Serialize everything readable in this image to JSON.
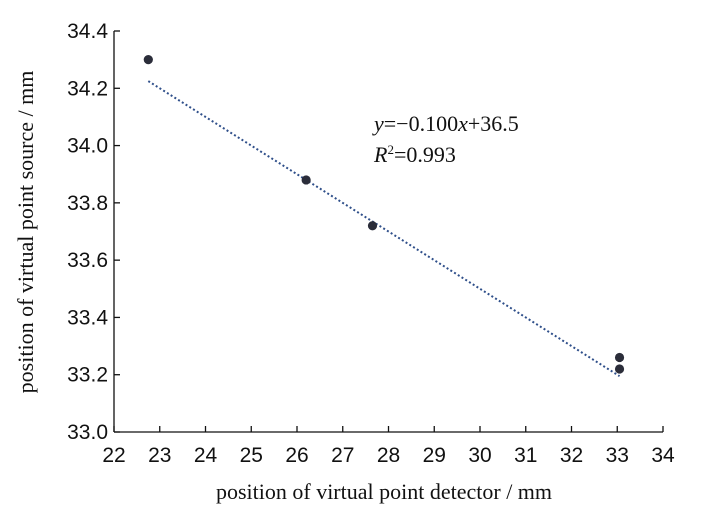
{
  "chart_data": {
    "type": "scatter",
    "title": "",
    "xlabel": "position of virtual point detector / mm",
    "ylabel": "position of virtual point source / mm",
    "xlim": [
      22,
      34
    ],
    "ylim": [
      33.0,
      34.4
    ],
    "x_ticks": [
      "22",
      "23",
      "24",
      "25",
      "26",
      "27",
      "28",
      "29",
      "30",
      "31",
      "32",
      "33",
      "34"
    ],
    "y_ticks": [
      "33.0",
      "33.2",
      "33.4",
      "33.6",
      "33.8",
      "34.0",
      "34.2",
      "34.4"
    ],
    "grid": false,
    "series": [
      {
        "points": [
          {
            "x": 22.75,
            "y": 34.3
          },
          {
            "x": 26.2,
            "y": 33.88
          },
          {
            "x": 27.65,
            "y": 33.72
          },
          {
            "x": 33.05,
            "y": 33.26
          },
          {
            "x": 33.05,
            "y": 33.22
          }
        ]
      }
    ],
    "trendline": {
      "slope": -0.1,
      "intercept": 36.5,
      "x_range": [
        22.75,
        33.05
      ],
      "equation_prefix": "y",
      "equation_rest": "=−0.100",
      "equation_x": "x",
      "equation_tail": "+36.5",
      "r2_label": "R",
      "r2_sup": "2",
      "r2_value": "=0.993"
    },
    "colors": {
      "points": "#2b2d3a",
      "trendline": "#2f4f8a",
      "axes": "#111111"
    }
  }
}
